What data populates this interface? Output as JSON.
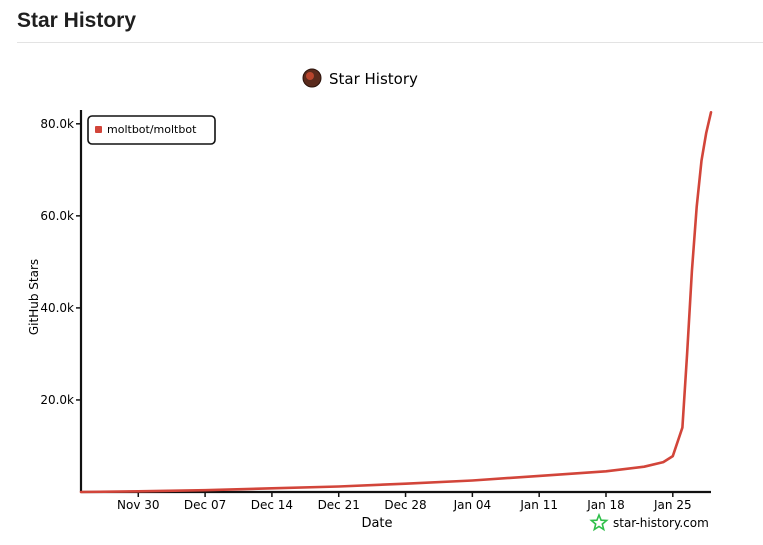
{
  "header": {
    "title": "Star History"
  },
  "chart_data": {
    "type": "line",
    "title": "Star History",
    "xlabel": "Date",
    "ylabel": "GitHub Stars",
    "x_tick_labels": [
      "Nov 30",
      "Dec 07",
      "Dec 14",
      "Dec 21",
      "Dec 28",
      "Jan 04",
      "Jan 11",
      "Jan 18",
      "Jan 25"
    ],
    "y_tick_labels": [
      "20.0k",
      "40.0k",
      "60.0k",
      "80.0k"
    ],
    "y_ticks": [
      20000,
      40000,
      60000,
      80000
    ],
    "xlim": [
      "2025-11-24",
      "2026-01-29"
    ],
    "ylim": [
      0,
      83000
    ],
    "grid": false,
    "legend_position": "top-left",
    "series": [
      {
        "name": "moltbot/moltbot",
        "color": "#d2453a",
        "points": [
          {
            "date": "2025-11-24",
            "stars": 0
          },
          {
            "date": "2025-11-30",
            "stars": 150
          },
          {
            "date": "2025-12-07",
            "stars": 400
          },
          {
            "date": "2025-12-14",
            "stars": 800
          },
          {
            "date": "2025-12-21",
            "stars": 1200
          },
          {
            "date": "2025-12-28",
            "stars": 1800
          },
          {
            "date": "2026-01-04",
            "stars": 2500
          },
          {
            "date": "2026-01-11",
            "stars": 3500
          },
          {
            "date": "2026-01-18",
            "stars": 4500
          },
          {
            "date": "2026-01-22",
            "stars": 5500
          },
          {
            "date": "2026-01-24",
            "stars": 6500
          },
          {
            "date": "2026-01-25",
            "stars": 7800
          },
          {
            "date": "2026-01-26",
            "stars": 14000
          },
          {
            "date": "2026-01-26T12:00",
            "stars": 30000
          },
          {
            "date": "2026-01-27",
            "stars": 48000
          },
          {
            "date": "2026-01-27T12:00",
            "stars": 62000
          },
          {
            "date": "2026-01-28",
            "stars": 72000
          },
          {
            "date": "2026-01-28T12:00",
            "stars": 78000
          },
          {
            "date": "2026-01-29",
            "stars": 82500
          }
        ]
      }
    ],
    "watermark": "star-history.com",
    "colors": {
      "axis": "#111111",
      "watermark": "#2fbf4a",
      "avatar": "#5a2a1c"
    }
  }
}
